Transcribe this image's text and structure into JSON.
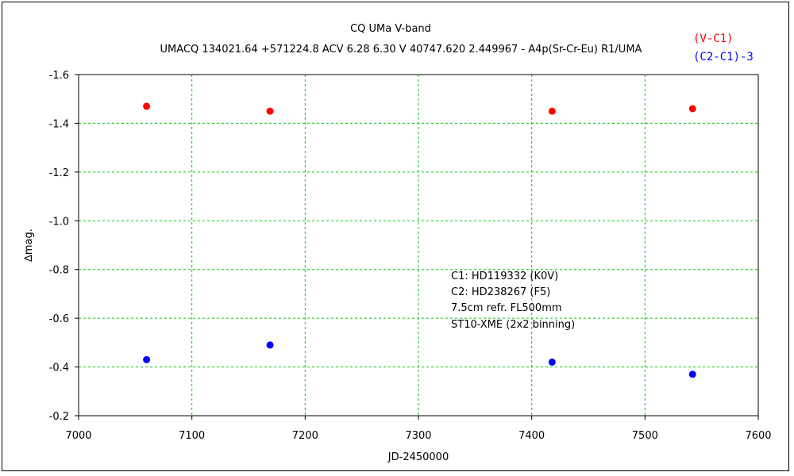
{
  "chart_data": {
    "type": "scatter",
    "title": "CQ UMa    V-band",
    "subtitle": "UMACQ 134021.64 +571224.8 ACV 6.28 6.30 V 40747.620 2.449967 - A4p(Sr-Cr-Eu) R1/UMA",
    "xlabel": "JD-2450000",
    "ylabel": "∆mag.",
    "xlim": [
      7000,
      7600
    ],
    "ylim": [
      -0.2,
      -1.6
    ],
    "y_inverted": true,
    "grid": true,
    "grid_color": "#00cc00",
    "x_ticks": [
      7000,
      7100,
      7200,
      7300,
      7400,
      7500,
      7600
    ],
    "x_tick_labels": [
      "7000",
      "7100",
      "7200",
      "7300",
      "7400",
      "7500",
      "7600"
    ],
    "y_ticks": [
      -1.6,
      -1.4,
      -1.2,
      -1.0,
      -0.8,
      -0.6,
      -0.4,
      -0.2
    ],
    "y_tick_labels": [
      "-1.6",
      "-1.4",
      "-1.2",
      "-1.0",
      "-0.8",
      "-0.6",
      "-0.4",
      "-0.2"
    ],
    "legend_position": "top-right",
    "series": [
      {
        "name": "(V-C1)",
        "color": "#ff0000",
        "x": [
          7060,
          7169,
          7418,
          7542
        ],
        "y": [
          -1.47,
          -1.45,
          -1.45,
          -1.46
        ]
      },
      {
        "name": "(C2-C1)-3",
        "color": "#0000ff",
        "x": [
          7060,
          7169,
          7418,
          7542
        ],
        "y": [
          -0.43,
          -0.49,
          -0.42,
          -0.37
        ]
      }
    ],
    "annotations": [
      "C1: HD119332 (K0V)",
      "C2: HD238267 (F5)",
      "7.5cm refr. FL500mm",
      "ST10-XME (2x2 binning)"
    ]
  }
}
